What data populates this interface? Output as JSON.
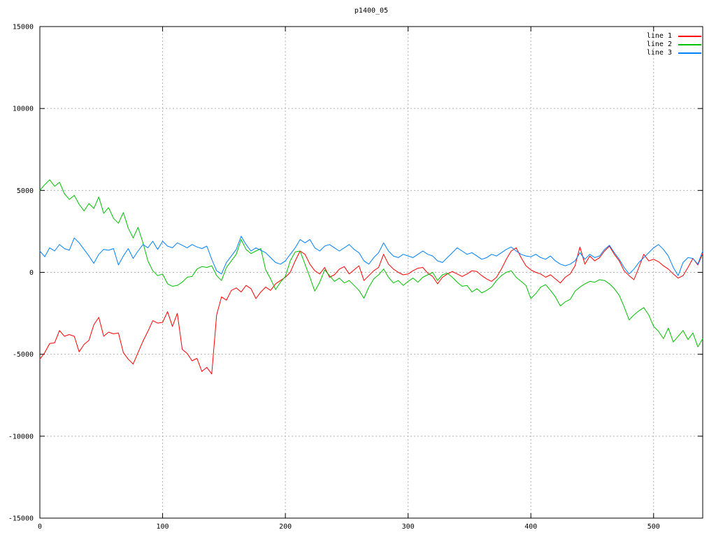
{
  "chart_data": {
    "type": "line",
    "title": "p1400_05",
    "xlabel": "",
    "ylabel": "",
    "xlim": [
      0,
      540
    ],
    "ylim": [
      -15000,
      15000
    ],
    "x_ticks": [
      0,
      100,
      200,
      300,
      400,
      500
    ],
    "y_ticks": [
      -15000,
      -10000,
      -5000,
      0,
      5000,
      10000,
      15000
    ],
    "grid": true,
    "grid_style": "dashed-gray",
    "legend_position": "top-right-inside",
    "x_step": 4,
    "series": [
      {
        "name": "line 1",
        "color": "#ff0000",
        "values": [
          -5300,
          -4900,
          -4350,
          -4300,
          -3550,
          -3900,
          -3800,
          -3900,
          -4850,
          -4400,
          -4150,
          -3200,
          -2750,
          -3900,
          -3650,
          -3750,
          -3700,
          -4900,
          -5300,
          -5600,
          -4900,
          -4200,
          -3600,
          -2950,
          -3100,
          -3050,
          -2400,
          -3300,
          -2500,
          -4700,
          -4950,
          -5400,
          -5250,
          -6050,
          -5800,
          -6200,
          -2600,
          -1500,
          -1700,
          -1100,
          -950,
          -1200,
          -800,
          -1000,
          -1600,
          -1200,
          -900,
          -1100,
          -700,
          -500,
          -300,
          0,
          700,
          1300,
          1100,
          500,
          100,
          -100,
          300,
          -300,
          -150,
          200,
          350,
          -100,
          150,
          400,
          -500,
          -200,
          100,
          300,
          1100,
          500,
          200,
          0,
          -150,
          -100,
          100,
          250,
          300,
          -50,
          -250,
          -700,
          -300,
          -100,
          50,
          -100,
          -250,
          -100,
          100,
          50,
          -200,
          -400,
          -550,
          -300,
          200,
          800,
          1300,
          1500,
          900,
          400,
          150,
          0,
          -100,
          -300,
          -150,
          -400,
          -650,
          -300,
          -100,
          400,
          1550,
          500,
          1000,
          700,
          900,
          1300,
          1600,
          1100,
          700,
          100,
          -200,
          -450,
          300,
          1100,
          700,
          800,
          650,
          400,
          200,
          -100,
          -350,
          -200,
          300,
          850,
          450,
          1150
        ]
      },
      {
        "name": "line 2",
        "color": "#00c000",
        "values": [
          5000,
          5350,
          5650,
          5250,
          5500,
          4800,
          4450,
          4700,
          4150,
          3750,
          4200,
          3900,
          4600,
          3600,
          3950,
          3300,
          3000,
          3650,
          2700,
          2100,
          2750,
          1800,
          700,
          100,
          -200,
          -100,
          -700,
          -850,
          -800,
          -600,
          -300,
          -250,
          200,
          350,
          300,
          400,
          -200,
          -500,
          300,
          700,
          1100,
          2000,
          1400,
          1150,
          1300,
          1450,
          150,
          -400,
          -1050,
          -600,
          -250,
          700,
          1250,
          1300,
          500,
          -300,
          -1150,
          -600,
          150,
          -200,
          -550,
          -350,
          -650,
          -500,
          -800,
          -1100,
          -1580,
          -900,
          -400,
          -150,
          200,
          -300,
          -650,
          -500,
          -800,
          -550,
          -350,
          -600,
          -300,
          -150,
          0,
          -500,
          -150,
          -50,
          -300,
          -600,
          -850,
          -800,
          -1200,
          -1000,
          -1250,
          -1100,
          -900,
          -500,
          -200,
          0,
          100,
          -300,
          -550,
          -800,
          -1600,
          -1300,
          -900,
          -750,
          -1100,
          -1500,
          -2050,
          -1800,
          -1650,
          -1150,
          -900,
          -700,
          -550,
          -600,
          -450,
          -500,
          -700,
          -1000,
          -1400,
          -2100,
          -2900,
          -2600,
          -2350,
          -2150,
          -2600,
          -3300,
          -3600,
          -4050,
          -3400,
          -4250,
          -3900,
          -3550,
          -4100,
          -3700,
          -4550,
          -4050
        ]
      },
      {
        "name": "line 3",
        "color": "#0080ff",
        "values": [
          1300,
          950,
          1500,
          1300,
          1700,
          1450,
          1350,
          2100,
          1800,
          1400,
          1000,
          550,
          1100,
          1400,
          1350,
          1450,
          450,
          1000,
          1450,
          850,
          1300,
          1700,
          1500,
          1900,
          1400,
          1900,
          1600,
          1500,
          1800,
          1650,
          1500,
          1700,
          1550,
          1450,
          1600,
          800,
          100,
          -100,
          600,
          1000,
          1400,
          2200,
          1700,
          1300,
          1500,
          1350,
          1200,
          900,
          600,
          500,
          700,
          1100,
          1500,
          2000,
          1800,
          2000,
          1500,
          1300,
          1600,
          1700,
          1500,
          1300,
          1500,
          1700,
          1400,
          1200,
          700,
          500,
          900,
          1200,
          1800,
          1300,
          1000,
          900,
          1100,
          1000,
          900,
          1100,
          1300,
          1100,
          1000,
          700,
          600,
          900,
          1200,
          1500,
          1300,
          1100,
          1200,
          1000,
          800,
          900,
          1100,
          1000,
          1200,
          1400,
          1550,
          1300,
          1100,
          1000,
          950,
          1100,
          900,
          800,
          1000,
          700,
          500,
          400,
          500,
          700,
          1200,
          800,
          1100,
          900,
          1000,
          1400,
          1650,
          1200,
          800,
          300,
          -100,
          200,
          600,
          900,
          1200,
          1500,
          1700,
          1400,
          1000,
          300,
          -200,
          600,
          900,
          850,
          500,
          1300
        ]
      }
    ],
    "colors": {
      "grid": "#b0b0b0",
      "border": "#000000",
      "text": "#000000",
      "background": "#ffffff"
    }
  }
}
